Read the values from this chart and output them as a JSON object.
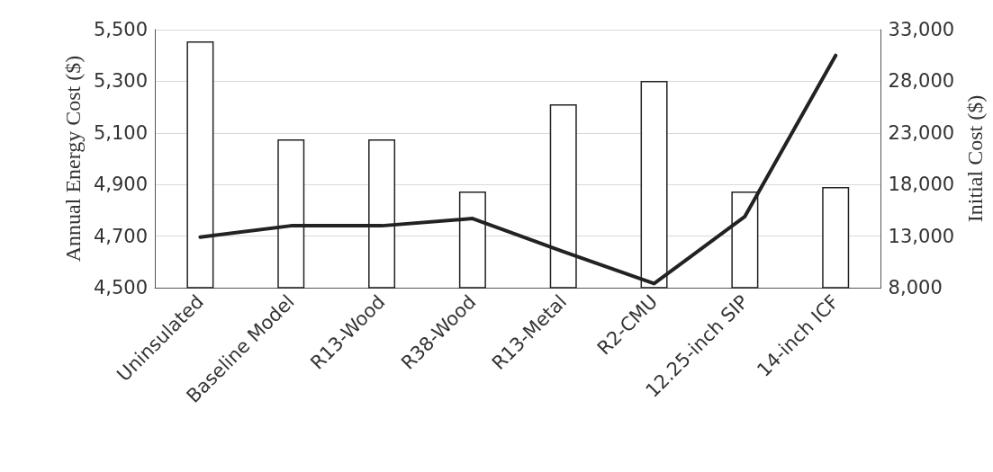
{
  "chart_data": {
    "type": "bar",
    "ylabel": "Annual Energy Cost ($)",
    "y2label": "Initial Cost ($)",
    "categories": [
      "Uninsulated",
      "Baseline Model",
      "R13-Wood",
      "R38-Wood",
      "R13-Metal",
      "R2-CMU",
      "12.25-inch SIP",
      "14-inch ICF"
    ],
    "series": [
      {
        "color": "#ffffff",
        "values": [
          5455,
          5075,
          5075,
          4873,
          5211,
          5301,
          4873,
          4890
        ]
      },
      {
        "type": "line",
        "axis": "y2",
        "color": "#222222",
        "values": [
          12900,
          14000,
          14000,
          14700,
          11500,
          8400,
          14900,
          30500
        ]
      }
    ],
    "ylim": [
      4500,
      5500
    ],
    "yticks": [
      {
        "value": 4500,
        "label": "4,500"
      },
      {
        "value": 4700,
        "label": "4,700"
      },
      {
        "value": 4900,
        "label": "4,900"
      },
      {
        "value": 5100,
        "label": "5,100"
      },
      {
        "value": 5300,
        "label": "5,300"
      },
      {
        "value": 5500,
        "label": "5,500"
      }
    ],
    "y2lim": [
      8000,
      33000
    ],
    "y2ticks": [
      {
        "value": 8000,
        "label": "8,000"
      },
      {
        "value": 13000,
        "label": "13,000"
      },
      {
        "value": 18000,
        "label": "18,000"
      },
      {
        "value": 23000,
        "label": "23,000"
      },
      {
        "value": 28000,
        "label": "28,000"
      },
      {
        "value": 33000,
        "label": "33,000"
      }
    ],
    "grid": "y",
    "marker": "none",
    "line_style": "solid"
  }
}
